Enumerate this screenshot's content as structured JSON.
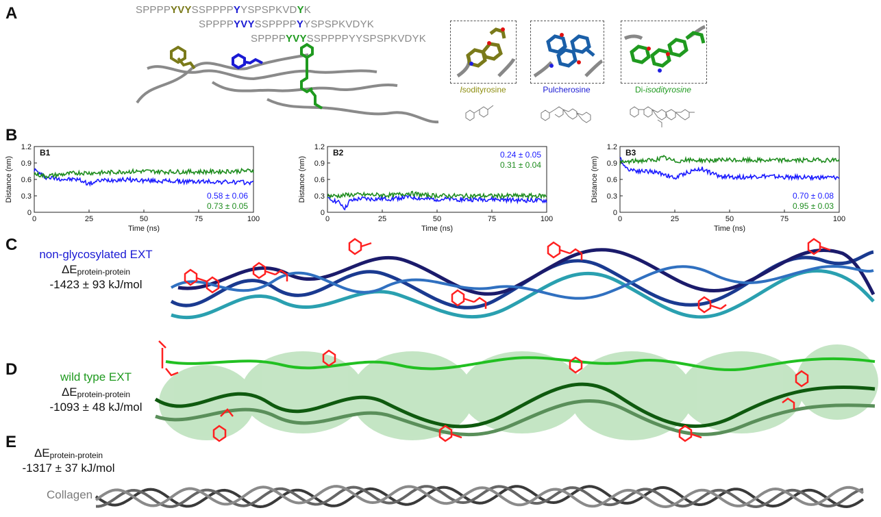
{
  "panel_letters": {
    "a": "A",
    "b": "B",
    "c": "C",
    "d": "D",
    "e": "E"
  },
  "sequences": [
    {
      "pre": "SPPPP",
      "hl1": "YVY",
      "mid": "SSPPPP",
      "hl2": "Y",
      "post1": "YSPSPKVD",
      "hl3": "Y",
      "post2": "K",
      "color": "#7a7a1a"
    },
    {
      "pre": "SPPPP",
      "hl1": "YVY",
      "mid": "SSPPPP",
      "hl2": "Y",
      "post1": "YSPSPKVDYK",
      "hl3": "",
      "post2": "",
      "color": "#1a1ad4"
    },
    {
      "pre": "SPPPP",
      "hl1": "YVY",
      "mid": "SSPPPP",
      "hl2": "",
      "post1": "YYSPSPKVDYK",
      "hl3": "",
      "post2": "",
      "color": "#1f9a1f"
    }
  ],
  "molecules": [
    {
      "prefix": "I",
      "rest": "sodityrosine",
      "color": "#8f8f12"
    },
    {
      "prefix": "",
      "rest": "Pulcherosine",
      "color": "#1a1ad4"
    },
    {
      "prefix": "Di-",
      "rest": "isodityrosine",
      "color": "#1f9a1f"
    }
  ],
  "colors": {
    "blue": "#1a1aff",
    "green": "#1e8c1e",
    "red": "#ff2020",
    "gray": "#8c8c8c"
  },
  "chart_data": [
    {
      "type": "line",
      "title": "B1",
      "xlabel": "Time (ns)",
      "ylabel": "Distance (nm)",
      "xlim": [
        0,
        100
      ],
      "ylim": [
        0,
        1.2
      ],
      "xticks": [
        "0",
        "25",
        "50",
        "75",
        "100"
      ],
      "yticks": [
        "0",
        "0.3",
        "0.6",
        "0.9",
        "1.2"
      ],
      "series": [
        {
          "color": "#1a1aff",
          "x": [
            0,
            5,
            10,
            15,
            20,
            25,
            30,
            40,
            50,
            60,
            70,
            80,
            90,
            100
          ],
          "values": [
            0.78,
            0.64,
            0.62,
            0.6,
            0.6,
            0.52,
            0.58,
            0.6,
            0.58,
            0.57,
            0.56,
            0.56,
            0.55,
            0.54
          ]
        },
        {
          "color": "#1e8c1e",
          "x": [
            0,
            5,
            10,
            15,
            20,
            25,
            30,
            40,
            50,
            60,
            70,
            80,
            90,
            100
          ],
          "values": [
            0.7,
            0.66,
            0.68,
            0.7,
            0.72,
            0.72,
            0.72,
            0.74,
            0.75,
            0.74,
            0.74,
            0.74,
            0.75,
            0.76
          ]
        }
      ],
      "annotations": [
        "0.58 ± 0.06",
        "0.73 ± 0.05"
      ],
      "annotation_colors": [
        "#1a1aff",
        "#1e8c1e"
      ]
    },
    {
      "type": "line",
      "title": "B2",
      "xlabel": "Time (ns)",
      "ylabel": "Distance (nm)",
      "xlim": [
        0,
        100
      ],
      "ylim": [
        0,
        1.2
      ],
      "xticks": [
        "0",
        "25",
        "50",
        "75",
        "100"
      ],
      "yticks": [
        "0",
        "0.3",
        "0.6",
        "0.9",
        "1.2"
      ],
      "series": [
        {
          "color": "#1a1aff",
          "x": [
            0,
            3,
            6,
            8,
            10,
            15,
            20,
            30,
            37,
            45,
            55,
            65,
            75,
            85,
            100
          ],
          "values": [
            0.24,
            0.22,
            0.16,
            0.07,
            0.2,
            0.25,
            0.24,
            0.25,
            0.28,
            0.24,
            0.24,
            0.23,
            0.24,
            0.22,
            0.21
          ]
        },
        {
          "color": "#1e8c1e",
          "x": [
            0,
            5,
            10,
            20,
            30,
            37,
            45,
            55,
            65,
            75,
            85,
            100
          ],
          "values": [
            0.3,
            0.3,
            0.32,
            0.32,
            0.31,
            0.35,
            0.31,
            0.3,
            0.3,
            0.3,
            0.3,
            0.3
          ]
        }
      ],
      "annotations": [
        "0.24 ± 0.05",
        "0.31 ± 0.04"
      ],
      "annotation_colors": [
        "#1a1aff",
        "#1e8c1e"
      ]
    },
    {
      "type": "line",
      "title": "B3",
      "xlabel": "Time (ns)",
      "ylabel": "Distance (nm)",
      "xlim": [
        0,
        100
      ],
      "ylim": [
        0,
        1.2
      ],
      "xticks": [
        "0",
        "25",
        "50",
        "75",
        "100"
      ],
      "yticks": [
        "0",
        "0.3",
        "0.6",
        "0.9",
        "1.2"
      ],
      "series": [
        {
          "color": "#1a1aff",
          "x": [
            0,
            3,
            8,
            15,
            20,
            25,
            30,
            37,
            45,
            55,
            65,
            75,
            85,
            100
          ],
          "values": [
            0.98,
            0.8,
            0.76,
            0.74,
            0.7,
            0.62,
            0.72,
            0.8,
            0.66,
            0.64,
            0.66,
            0.64,
            0.64,
            0.63
          ]
        },
        {
          "color": "#1e8c1e",
          "x": [
            0,
            3,
            8,
            15,
            20,
            25,
            30,
            40,
            50,
            60,
            70,
            80,
            90,
            100
          ],
          "values": [
            0.9,
            0.92,
            0.94,
            0.95,
            1.0,
            0.93,
            0.95,
            0.95,
            0.95,
            0.95,
            0.95,
            0.95,
            0.95,
            0.96
          ]
        }
      ],
      "annotations": [
        "0.70 ± 0.08",
        "0.95 ± 0.03"
      ],
      "annotation_colors": [
        "#1a1aff",
        "#1e8c1e"
      ]
    }
  ],
  "panel_c": {
    "title": "non-glycosylated EXT",
    "delta": "ΔE",
    "subscript": "protein-protein",
    "energy": "-1423 ± 93 kJ/mol"
  },
  "panel_d": {
    "title": "wild type EXT",
    "delta": "ΔE",
    "subscript": "protein-protein",
    "energy": "-1093 ± 48 kJ/mol"
  },
  "panel_e": {
    "delta": "ΔE",
    "subscript": "protein-protein",
    "energy": "-1317 ± 37 kJ/mol",
    "title": "Collagen"
  }
}
